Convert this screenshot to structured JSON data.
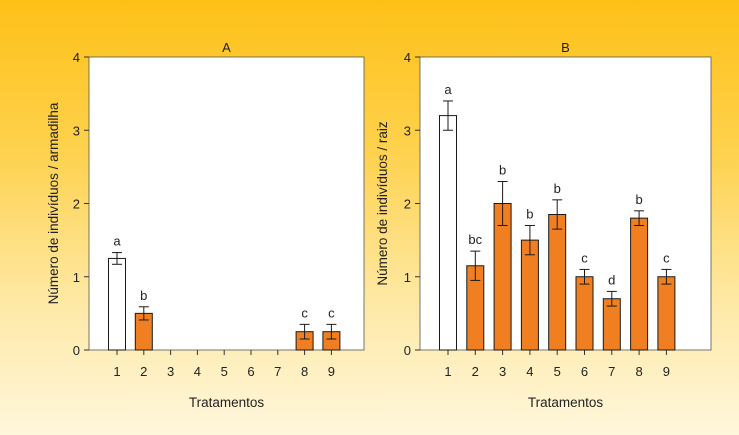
{
  "chart_data": [
    {
      "type": "bar",
      "title": "A",
      "xlabel": "Tratamentos",
      "ylabel": "Número de indivíduos / armadilha",
      "ylim": [
        0,
        4
      ],
      "yticks": [
        "0",
        "1",
        "2",
        "3",
        "4"
      ],
      "categories": [
        "1",
        "2",
        "3",
        "4",
        "5",
        "6",
        "7",
        "8",
        "9"
      ],
      "values": [
        1.25,
        0.5,
        0,
        0,
        0,
        0,
        0,
        0.25,
        0.25
      ],
      "errors": [
        0.08,
        0.09,
        0,
        0,
        0,
        0,
        0,
        0.1,
        0.1
      ],
      "letters": [
        "a",
        "b",
        "",
        "",
        "",
        "",
        "",
        "c",
        "c"
      ],
      "fills": [
        "#ffffff",
        "#f07f22",
        "#f07f22",
        "#f07f22",
        "#f07f22",
        "#f07f22",
        "#f07f22",
        "#f07f22",
        "#f07f22"
      ],
      "grid": false
    },
    {
      "type": "bar",
      "title": "B",
      "xlabel": "Tratamentos",
      "ylabel": "Número de indivíduos / raiz",
      "ylim": [
        0,
        4
      ],
      "yticks": [
        "0",
        "1",
        "2",
        "3",
        "4"
      ],
      "categories": [
        "1",
        "2",
        "3",
        "4",
        "5",
        "6",
        "7",
        "8",
        "9"
      ],
      "values": [
        3.2,
        1.15,
        2.0,
        1.5,
        1.85,
        1.0,
        0.7,
        1.8,
        1.0
      ],
      "errors": [
        0.2,
        0.2,
        0.3,
        0.2,
        0.2,
        0.1,
        0.1,
        0.1,
        0.1
      ],
      "letters": [
        "a",
        "bc",
        "b",
        "b",
        "b",
        "c",
        "d",
        "b",
        "c"
      ],
      "fills": [
        "#ffffff",
        "#f07f22",
        "#f07f22",
        "#f07f22",
        "#f07f22",
        "#f07f22",
        "#f07f22",
        "#f07f22",
        "#f07f22"
      ],
      "grid": false
    }
  ],
  "colors": {
    "bar_stroke": "#1a1a1a",
    "panel_bg": "#ffffff"
  }
}
